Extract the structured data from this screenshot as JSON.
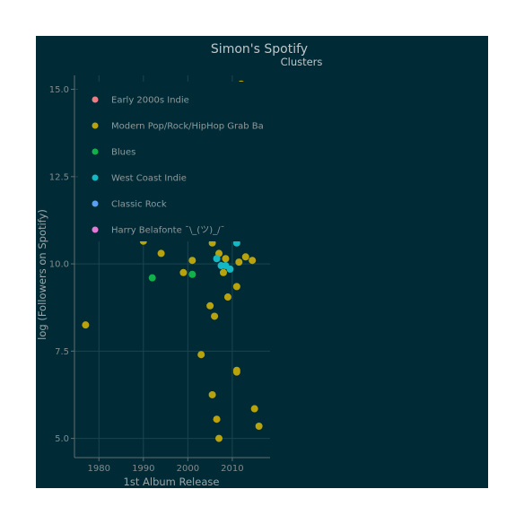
{
  "chart_data": {
    "type": "scatter",
    "title": "Simon's Spotify",
    "subtitle": "Clusters",
    "xlabel": "1st Album Release",
    "ylabel": "log (Followers on Spotify)",
    "xlim": [
      1974.5,
      2018.5
    ],
    "ylim": [
      4.45,
      15.4
    ],
    "xticks": [
      1980,
      1990,
      2000,
      2010
    ],
    "yticks": [
      5.0,
      7.5,
      10.0,
      12.5,
      15.0
    ],
    "ytick_labels": [
      "5.0",
      "7.5",
      "10.0",
      "12.5",
      "15.0"
    ],
    "grid": true,
    "legend_position": "top-left",
    "series": [
      {
        "name": "Early 2000s Indie",
        "color": "#ef7b83",
        "points": []
      },
      {
        "name": "Modern Pop/Rock/HipHop Grab Ba",
        "color": "#b8a30d",
        "points": [
          [
            1977,
            8.25
          ],
          [
            1990,
            10.65
          ],
          [
            1994,
            10.3
          ],
          [
            1997.5,
            10.75
          ],
          [
            1999,
            9.75
          ],
          [
            2001,
            10.1
          ],
          [
            2003,
            7.4
          ],
          [
            2005,
            8.8
          ],
          [
            2005.5,
            6.25
          ],
          [
            2005.5,
            10.6
          ],
          [
            2006,
            8.5
          ],
          [
            2006.5,
            5.55
          ],
          [
            2007,
            10.3
          ],
          [
            2007,
            5.0
          ],
          [
            2008,
            9.75
          ],
          [
            2008.5,
            10.15
          ],
          [
            2009,
            9.05
          ],
          [
            2011,
            6.95
          ],
          [
            2011,
            6.9
          ],
          [
            2011,
            9.35
          ],
          [
            2011.5,
            10.05
          ],
          [
            2012,
            15.15
          ],
          [
            2013,
            10.2
          ],
          [
            2014.5,
            10.1
          ],
          [
            2015,
            5.85
          ],
          [
            2016,
            5.35
          ]
        ]
      },
      {
        "name": "Blues",
        "color": "#12b04b",
        "points": [
          [
            1992,
            9.6
          ],
          [
            2001,
            9.7
          ]
        ]
      },
      {
        "name": "West Coast Indie",
        "color": "#14b8c4",
        "points": [
          [
            2006.5,
            10.15
          ],
          [
            2007.5,
            9.95
          ],
          [
            2008.5,
            9.95
          ],
          [
            2009.5,
            9.85
          ],
          [
            2011,
            10.6
          ]
        ]
      },
      {
        "name": "Classic Rock",
        "color": "#5aa0f0",
        "points": []
      },
      {
        "name": "Harry Belafonte ¯\\_(ツ)_/¯",
        "color": "#e678d8",
        "points": []
      }
    ]
  }
}
